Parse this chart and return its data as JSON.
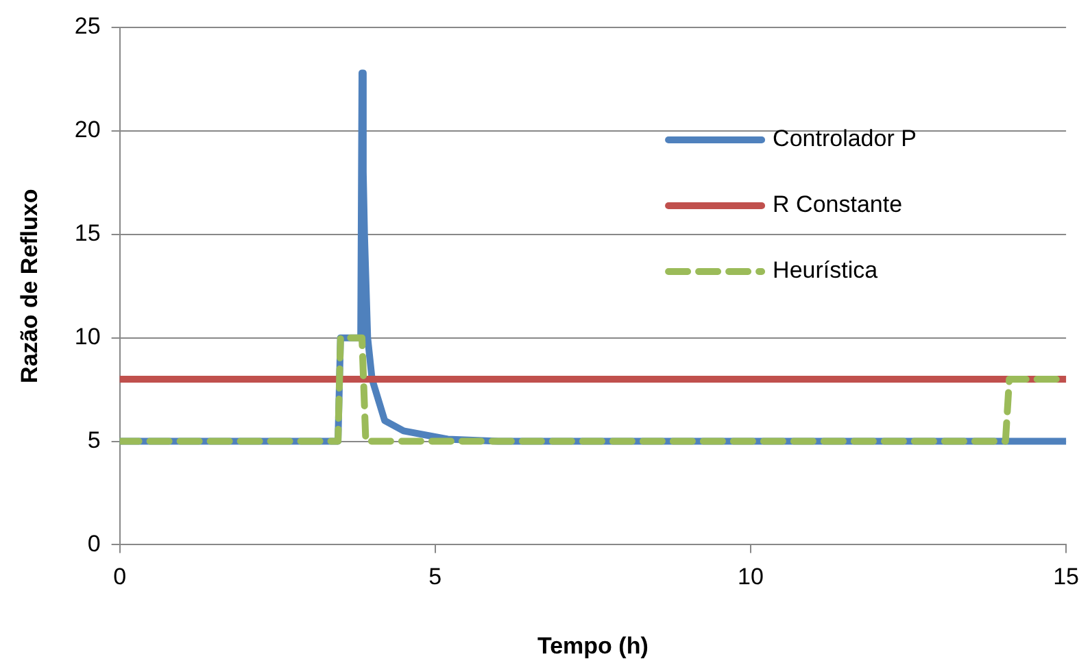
{
  "chart_data": {
    "type": "line",
    "xlabel": "Tempo (h)",
    "ylabel": "Razão de Refluxo",
    "xlim": [
      0,
      15
    ],
    "xticks": [
      0,
      5,
      10,
      15
    ],
    "ylim": [
      0,
      25
    ],
    "yticks": [
      0,
      5,
      10,
      15,
      20,
      25
    ],
    "grid": "y",
    "legend": "top right",
    "marker": "none",
    "series": [
      {
        "name": "Controlador P",
        "color": "#4f81bd",
        "line_style": "solid",
        "x": [
          0,
          3.46,
          3.5,
          3.82,
          3.84,
          3.86,
          3.88,
          3.93,
          4.0,
          4.2,
          4.5,
          5.2,
          6,
          15
        ],
        "values": [
          5,
          5,
          10,
          10,
          22.8,
          18,
          15,
          10,
          8,
          6,
          5.5,
          5.1,
          5,
          5
        ]
      },
      {
        "name": "R Constante",
        "color": "#c0504d",
        "line_style": "solid",
        "x": [
          0,
          15
        ],
        "values": [
          8,
          8
        ]
      },
      {
        "name": "Heurística",
        "color": "#9bbb59",
        "line_style": "dashed",
        "x": [
          0,
          3.46,
          3.5,
          3.84,
          3.9,
          14.04,
          14.1,
          15
        ],
        "values": [
          5,
          5,
          10,
          10,
          5,
          5,
          8,
          8
        ]
      }
    ]
  }
}
